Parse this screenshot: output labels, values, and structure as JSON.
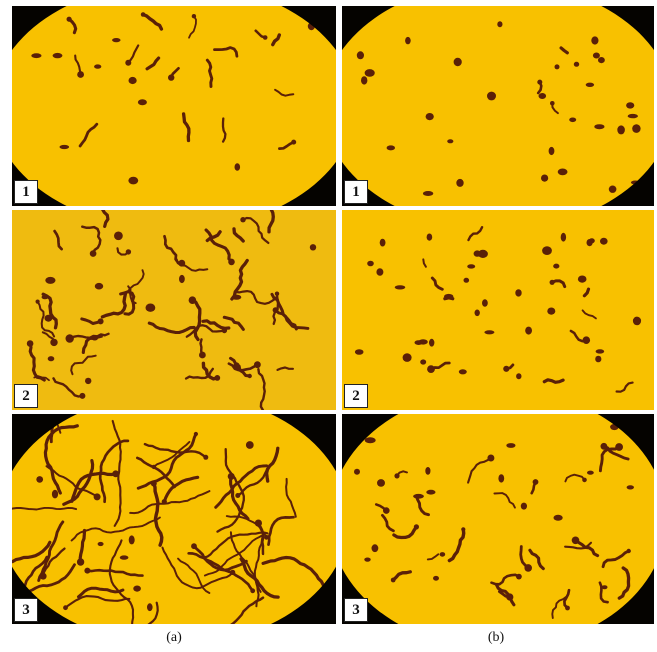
{
  "figure": {
    "panels": [
      {
        "id": "a1",
        "column": "a",
        "label": "1"
      },
      {
        "id": "a2",
        "column": "a",
        "label": "2"
      },
      {
        "id": "a3",
        "column": "a",
        "label": "3"
      },
      {
        "id": "b1",
        "column": "b",
        "label": "1"
      },
      {
        "id": "b2",
        "column": "b",
        "label": "2"
      },
      {
        "id": "b3",
        "column": "b",
        "label": "3"
      }
    ],
    "captions": {
      "a": "(a)",
      "b": "(b)"
    },
    "colors": {
      "background": "#f8c100",
      "background_alt": "#efbb10",
      "specimen": "#5a2008",
      "vignette": "#050300"
    }
  }
}
